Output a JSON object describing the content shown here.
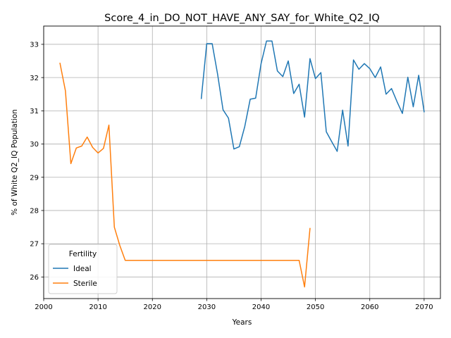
{
  "chart_data": {
    "type": "line",
    "title": "Score_4_in_DO_NOT_HAVE_ANY_SAY_for_White_Q2_IQ",
    "xlabel": "Years",
    "ylabel": "% of White Q2_IQ Population",
    "xlim": [
      2000,
      2073
    ],
    "ylim": [
      25.35,
      33.55
    ],
    "xticks": [
      2000,
      2010,
      2020,
      2030,
      2040,
      2050,
      2060,
      2070
    ],
    "yticks": [
      26,
      27,
      28,
      29,
      30,
      31,
      32,
      33
    ],
    "grid": true,
    "legend": {
      "title": "Fertility",
      "placement": "lower-left"
    },
    "series": [
      {
        "name": "Ideal",
        "color": "#1f77b4",
        "x": [
          2029,
          2030,
          2031,
          2032,
          2033,
          2034,
          2035,
          2036,
          2037,
          2038,
          2039,
          2040,
          2041,
          2042,
          2043,
          2044,
          2045,
          2046,
          2047,
          2048,
          2049,
          2050,
          2051,
          2052,
          2053,
          2054,
          2055,
          2056,
          2057,
          2058,
          2059,
          2060,
          2061,
          2062,
          2063,
          2064,
          2065,
          2066,
          2067,
          2068,
          2069,
          2070
        ],
        "y": [
          31.37,
          33.02,
          33.02,
          32.1,
          31.03,
          30.78,
          29.85,
          29.92,
          30.53,
          31.35,
          31.38,
          32.42,
          33.1,
          33.1,
          32.2,
          32.03,
          32.5,
          31.52,
          31.8,
          30.81,
          32.57,
          31.97,
          32.15,
          30.37,
          30.07,
          29.78,
          31.02,
          29.94,
          32.53,
          32.25,
          32.42,
          32.27,
          32.0,
          32.32,
          31.5,
          31.67,
          31.28,
          30.92,
          32.01,
          31.12,
          32.07,
          30.97
        ]
      },
      {
        "name": "Sterile",
        "color": "#ff7f0e",
        "x": [
          2003,
          2004,
          2005,
          2006,
          2007,
          2008,
          2009,
          2010,
          2011,
          2012,
          2013,
          2014,
          2015,
          2016,
          2017,
          2018,
          2019,
          2020,
          2021,
          2022,
          2023,
          2024,
          2025,
          2026,
          2027,
          2028,
          2029,
          2030,
          2031,
          2032,
          2033,
          2034,
          2035,
          2036,
          2037,
          2038,
          2039,
          2040,
          2041,
          2042,
          2043,
          2044,
          2045,
          2046,
          2047,
          2048,
          2049
        ],
        "y": [
          32.43,
          31.6,
          29.41,
          29.88,
          29.94,
          30.21,
          29.9,
          29.73,
          29.87,
          30.57,
          27.5,
          26.95,
          26.5,
          26.5,
          26.5,
          26.5,
          26.5,
          26.5,
          26.5,
          26.5,
          26.5,
          26.5,
          26.5,
          26.5,
          26.5,
          26.5,
          26.5,
          26.5,
          26.5,
          26.5,
          26.5,
          26.5,
          26.5,
          26.5,
          26.5,
          26.5,
          26.5,
          26.5,
          26.5,
          26.5,
          26.5,
          26.5,
          26.5,
          26.5,
          26.5,
          25.7,
          27.46
        ]
      }
    ]
  }
}
